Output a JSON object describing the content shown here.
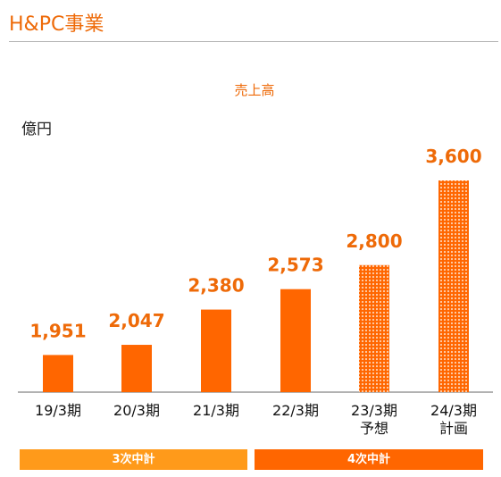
{
  "header": {
    "title": "H&PC事業"
  },
  "chart_data": {
    "type": "bar",
    "title": "売上高",
    "ylabel": "億円",
    "xlabel": "",
    "categories": [
      "19/3期",
      "20/3期",
      "21/3期",
      "22/3期",
      "23/3期\n予想",
      "24/3期\n計画"
    ],
    "values": [
      1951,
      2047,
      2380,
      2573,
      2800,
      3600
    ],
    "value_labels": [
      "1,951",
      "2,047",
      "2,380",
      "2,573",
      "2,800",
      "3,600"
    ],
    "bar_styles": [
      "solid",
      "solid",
      "solid",
      "solid",
      "patterned",
      "patterned"
    ],
    "ylim": [
      1600,
      3750
    ],
    "grid": false,
    "colors": {
      "bar": "#ff6600",
      "label": "#ee6a08",
      "pattern_light": "#ffd2b0"
    }
  },
  "plan_legend": [
    {
      "label": "3次中計",
      "color": "#ff9a1a"
    },
    {
      "label": "4次中計",
      "color": "#ff6600"
    }
  ]
}
